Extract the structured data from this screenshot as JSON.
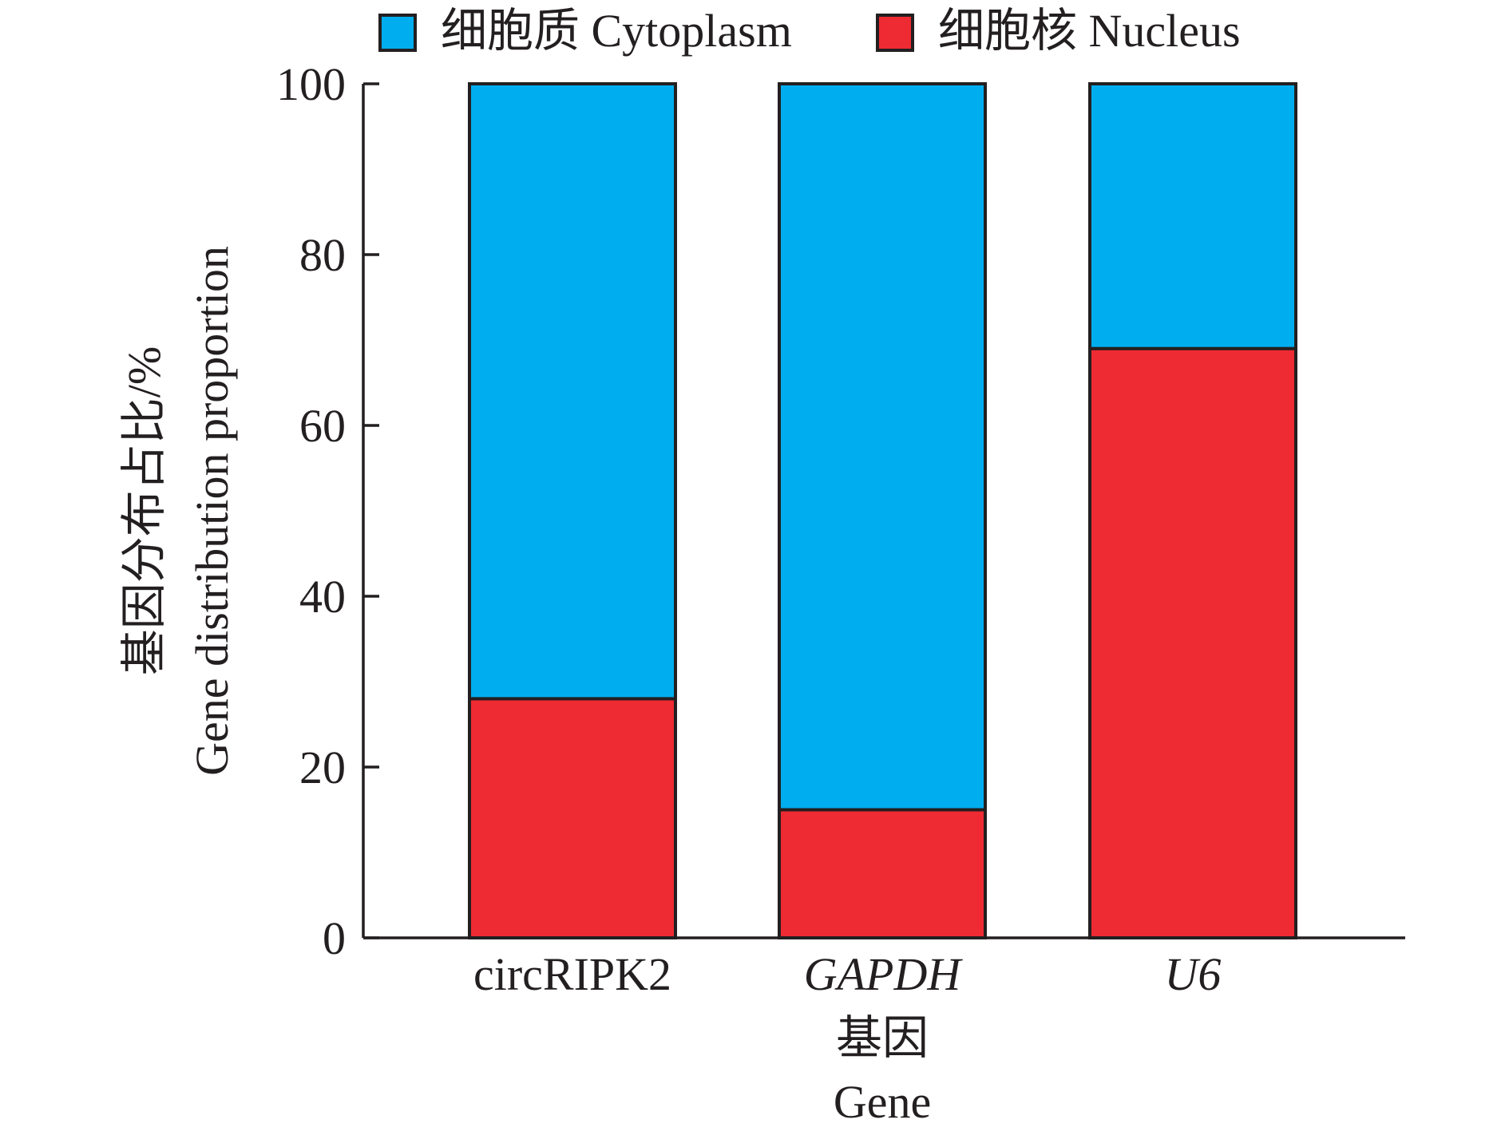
{
  "chart_data": {
    "type": "bar",
    "stacked": true,
    "title": "",
    "categories": [
      "circRIPK2",
      "GAPDH",
      "U6"
    ],
    "category_italic": [
      false,
      true,
      true
    ],
    "series": [
      {
        "name": "细胞核 Nucleus",
        "color": "#ee2a32",
        "values": [
          28,
          15,
          69
        ]
      },
      {
        "name": "细胞质 Cytoplasm",
        "color": "#00aeef",
        "values": [
          72,
          85,
          31
        ]
      }
    ],
    "legend_order": [
      "细胞质 Cytoplasm",
      "细胞核 Nucleus"
    ],
    "legend_position": "top",
    "ylim": [
      0,
      100
    ],
    "yticks": [
      0,
      20,
      40,
      60,
      80,
      100
    ],
    "ylabel_cn": "基因分布占比/%",
    "ylabel_en": "Gene distribution proportion",
    "xlabel_cn": "基因",
    "xlabel_en": "Gene",
    "grid": false
  }
}
